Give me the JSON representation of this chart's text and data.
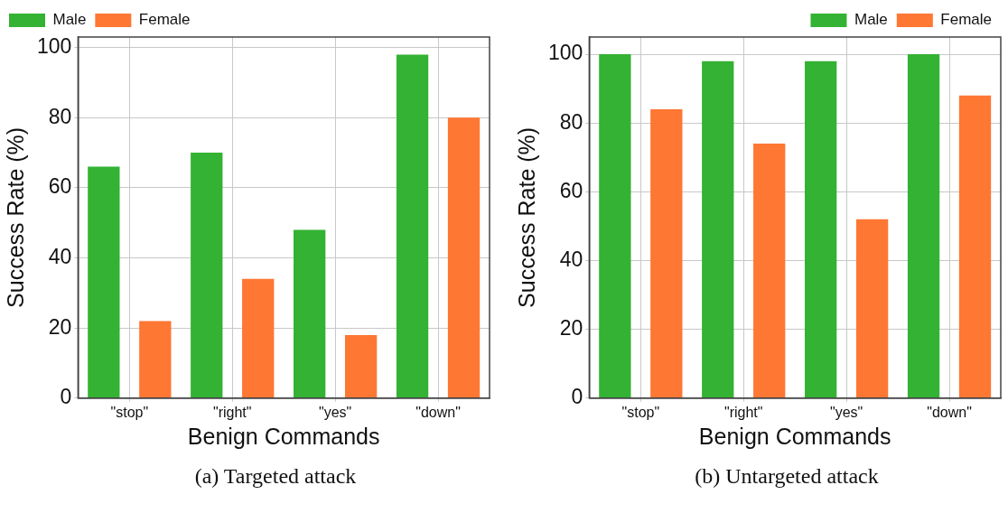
{
  "chart_data": [
    {
      "type": "bar",
      "xlabel": "Benign Commands",
      "ylabel": "Success Rate (%)",
      "categories": [
        "\"stop\"",
        "\"right\"",
        "\"yes\"",
        "\"down\""
      ],
      "series": [
        {
          "name": "Male",
          "color": "#33b233",
          "values": [
            66,
            70,
            48,
            98
          ]
        },
        {
          "name": "Female",
          "color": "#fe7733",
          "values": [
            22,
            34,
            18,
            80
          ]
        }
      ],
      "ylim": [
        0,
        103
      ],
      "yticks": [
        0,
        20,
        40,
        60,
        80,
        100
      ],
      "grid": true,
      "legend": "top left",
      "annotations": [
        "(a) Targeted attack"
      ]
    },
    {
      "type": "bar",
      "xlabel": "Benign Commands",
      "ylabel": "Success Rate (%)",
      "categories": [
        "\"stop\"",
        "\"right\"",
        "\"yes\"",
        "\"down\""
      ],
      "series": [
        {
          "name": "Male",
          "color": "#33b233",
          "values": [
            100,
            98,
            98,
            100
          ]
        },
        {
          "name": "Female",
          "color": "#fe7733",
          "values": [
            84,
            74,
            52,
            88
          ]
        }
      ],
      "ylim": [
        0,
        105
      ],
      "yticks": [
        0,
        20,
        40,
        60,
        80,
        100
      ],
      "grid": true,
      "legend": "top right",
      "annotations": [
        "(b) Untargeted attack"
      ]
    }
  ]
}
